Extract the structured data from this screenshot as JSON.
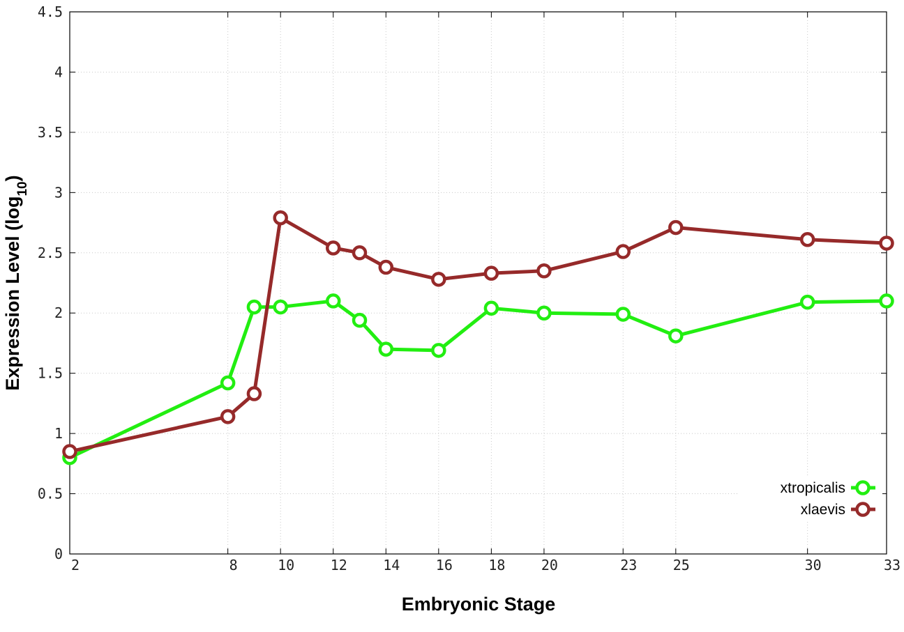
{
  "chart_data": {
    "type": "line",
    "xlabel": "Embryonic Stage",
    "ylabel_main": "Expression Level (log",
    "ylabel_sub": "10",
    "ylabel_close": ")",
    "x_ticks": [
      2,
      8,
      10,
      12,
      14,
      16,
      18,
      20,
      23,
      25,
      30,
      33
    ],
    "x_tick_labels": [
      "2",
      "8",
      "10",
      "12",
      "14",
      "16",
      "18",
      "20",
      "23",
      "25",
      "30",
      "33"
    ],
    "x_categories": [
      2,
      8,
      9,
      10,
      12,
      13,
      14,
      16,
      18,
      20,
      23,
      25,
      30,
      33
    ],
    "y_ticks": [
      0,
      0.5,
      1,
      1.5,
      2,
      2.5,
      3,
      3.5,
      4,
      4.5
    ],
    "y_tick_labels": [
      "0",
      "0.5",
      "1",
      "1.5",
      "2",
      "2.5",
      "3",
      "3.5",
      "4",
      "4.5"
    ],
    "ylim": [
      0,
      4.5
    ],
    "grid": true,
    "legend_position": "bottom-right",
    "series": [
      {
        "name": "xtropicalis",
        "color": "#22ee11",
        "values": [
          0.8,
          1.42,
          2.05,
          2.05,
          2.1,
          1.94,
          1.7,
          1.69,
          2.04,
          2.0,
          1.99,
          1.81,
          2.09,
          2.1
        ]
      },
      {
        "name": "xlaevis",
        "color": "#962a2a",
        "values": [
          0.85,
          1.14,
          1.33,
          2.79,
          2.54,
          2.5,
          2.38,
          2.28,
          2.33,
          2.35,
          2.51,
          2.71,
          2.61,
          2.58
        ]
      }
    ]
  }
}
